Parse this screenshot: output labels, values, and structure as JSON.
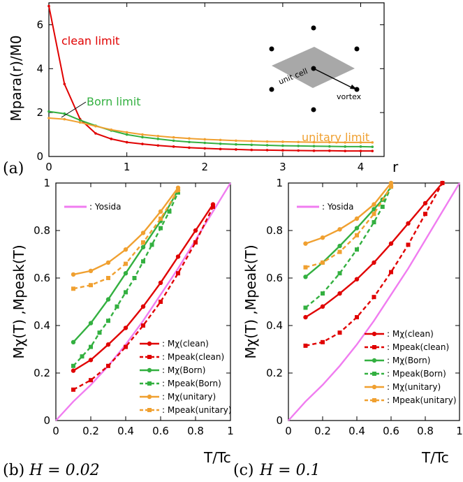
{
  "chart_data": [
    {
      "type": "line",
      "panel_label": "(a)",
      "ylabel": "Mpara(r)/M0",
      "xlabel": "r",
      "xlim": [
        0,
        4.3
      ],
      "ylim": [
        0,
        7
      ],
      "x_ticks": [
        "0",
        "1",
        "2",
        "3",
        "4"
      ],
      "y_ticks": [
        "0",
        "2",
        "4",
        "6"
      ],
      "series": [
        {
          "name": "clean limit",
          "color": "#e00000",
          "x": [
            0,
            0.2,
            0.4,
            0.6,
            0.8,
            1.0,
            1.2,
            1.4,
            1.6,
            1.8,
            2.0,
            2.2,
            2.4,
            2.6,
            2.8,
            3.0,
            3.2,
            3.4,
            3.6,
            3.8,
            4.0,
            4.15
          ],
          "y": [
            6.85,
            3.3,
            1.7,
            1.05,
            0.8,
            0.65,
            0.57,
            0.5,
            0.45,
            0.4,
            0.37,
            0.34,
            0.32,
            0.3,
            0.29,
            0.28,
            0.27,
            0.26,
            0.26,
            0.25,
            0.25,
            0.25
          ]
        },
        {
          "name": "Born limit",
          "color": "#33b040",
          "x": [
            0,
            0.2,
            0.4,
            0.6,
            0.8,
            1.0,
            1.2,
            1.4,
            1.6,
            1.8,
            2.0,
            2.2,
            2.4,
            2.6,
            2.8,
            3.0,
            3.2,
            3.4,
            3.6,
            3.8,
            4.0,
            4.15
          ],
          "y": [
            2.05,
            1.95,
            1.65,
            1.4,
            1.18,
            1.0,
            0.88,
            0.8,
            0.72,
            0.66,
            0.62,
            0.58,
            0.55,
            0.53,
            0.51,
            0.49,
            0.48,
            0.47,
            0.46,
            0.45,
            0.45,
            0.44
          ]
        },
        {
          "name": "unitary limit",
          "color": "#f0a030",
          "x": [
            0,
            0.2,
            0.4,
            0.6,
            0.8,
            1.0,
            1.2,
            1.4,
            1.6,
            1.8,
            2.0,
            2.2,
            2.4,
            2.6,
            2.8,
            3.0,
            3.2,
            3.4,
            3.6,
            3.8,
            4.0,
            4.15
          ],
          "y": [
            1.75,
            1.7,
            1.55,
            1.38,
            1.22,
            1.1,
            1.0,
            0.93,
            0.87,
            0.82,
            0.78,
            0.75,
            0.72,
            0.7,
            0.68,
            0.67,
            0.66,
            0.65,
            0.65,
            0.64,
            0.64,
            0.64
          ]
        }
      ],
      "inset_labels": {
        "cell": "unit cell",
        "vortex": "vortex"
      }
    },
    {
      "type": "line",
      "panel_label": "(b)",
      "panel_note": "H = 0.02",
      "ylabel": "Mχ(T) ,Mpeak(T)",
      "xlabel": "T/Tc",
      "xlim": [
        0,
        1
      ],
      "ylim": [
        0,
        1
      ],
      "x_ticks": [
        "0",
        "0.2",
        "0.4",
        "0.6",
        "0.8",
        "1"
      ],
      "y_ticks": [
        "0",
        "0.2",
        "0.4",
        "0.6",
        "0.8",
        "1"
      ],
      "legend_top": ": Yosida",
      "series": [
        {
          "name": ": Yosida",
          "color": "#f07cf0",
          "style": "solid",
          "marker": "none",
          "x": [
            0,
            0.1,
            0.2,
            0.3,
            0.4,
            0.5,
            0.6,
            0.7,
            0.8,
            0.9,
            1.0
          ],
          "y": [
            0.0,
            0.08,
            0.15,
            0.23,
            0.32,
            0.42,
            0.53,
            0.64,
            0.76,
            0.88,
            1.0
          ]
        },
        {
          "name": ": Mχ(clean)",
          "color": "#e00000",
          "style": "solid",
          "marker": "circle",
          "x": [
            0.1,
            0.2,
            0.3,
            0.4,
            0.5,
            0.6,
            0.7,
            0.8,
            0.9
          ],
          "y": [
            0.21,
            0.255,
            0.32,
            0.39,
            0.48,
            0.58,
            0.69,
            0.8,
            0.91
          ]
        },
        {
          "name": ": Mpeak(clean)",
          "color": "#e00000",
          "style": "dashed",
          "marker": "square",
          "x": [
            0.1,
            0.2,
            0.3,
            0.4,
            0.5,
            0.6,
            0.7,
            0.8,
            0.9
          ],
          "y": [
            0.13,
            0.17,
            0.23,
            0.31,
            0.4,
            0.5,
            0.62,
            0.75,
            0.9
          ]
        },
        {
          "name": ": Mχ(Born)",
          "color": "#33b040",
          "style": "solid",
          "marker": "circle",
          "x": [
            0.1,
            0.2,
            0.3,
            0.4,
            0.5,
            0.6,
            0.7
          ],
          "y": [
            0.33,
            0.41,
            0.51,
            0.62,
            0.73,
            0.84,
            0.97
          ]
        },
        {
          "name": ": Mpeak(Born)",
          "color": "#33b040",
          "style": "dashed",
          "marker": "square",
          "x": [
            0.1,
            0.15,
            0.2,
            0.25,
            0.3,
            0.35,
            0.4,
            0.45,
            0.5,
            0.55,
            0.6,
            0.65,
            0.7
          ],
          "y": [
            0.23,
            0.27,
            0.31,
            0.37,
            0.42,
            0.48,
            0.54,
            0.6,
            0.67,
            0.74,
            0.81,
            0.88,
            0.96
          ]
        },
        {
          "name": ": Mχ(unitary)",
          "color": "#f0a030",
          "style": "solid",
          "marker": "circle",
          "x": [
            0.1,
            0.2,
            0.3,
            0.4,
            0.5,
            0.6,
            0.7
          ],
          "y": [
            0.615,
            0.63,
            0.665,
            0.72,
            0.79,
            0.88,
            0.98
          ]
        },
        {
          "name": ": Mpeak(unitary)",
          "color": "#f0a030",
          "style": "dashed",
          "marker": "square",
          "x": [
            0.1,
            0.2,
            0.3,
            0.4,
            0.5,
            0.6,
            0.7
          ],
          "y": [
            0.555,
            0.57,
            0.6,
            0.66,
            0.75,
            0.85,
            0.97
          ]
        }
      ]
    },
    {
      "type": "line",
      "panel_label": "(c)",
      "panel_note": "H = 0.1",
      "ylabel": "Mχ(T) ,Mpeak(T)",
      "xlabel": "T/Tc",
      "xlim": [
        0,
        1
      ],
      "ylim": [
        0,
        1
      ],
      "x_ticks": [
        "0",
        "0.2",
        "0.4",
        "0.6",
        "0.8",
        "1"
      ],
      "y_ticks": [
        "0",
        "0.2",
        "0.4",
        "0.6",
        "0.8",
        "1"
      ],
      "legend_top": ": Yosida",
      "series": [
        {
          "name": ": Yosida",
          "color": "#f07cf0",
          "style": "solid",
          "marker": "none",
          "x": [
            0,
            0.1,
            0.2,
            0.3,
            0.4,
            0.5,
            0.6,
            0.7,
            0.8,
            0.9,
            1.0
          ],
          "y": [
            0.0,
            0.08,
            0.15,
            0.23,
            0.32,
            0.42,
            0.53,
            0.64,
            0.76,
            0.88,
            1.0
          ]
        },
        {
          "name": ": Mχ(clean)",
          "color": "#e00000",
          "style": "solid",
          "marker": "circle",
          "x": [
            0.1,
            0.2,
            0.3,
            0.4,
            0.5,
            0.6,
            0.7,
            0.8,
            0.9
          ],
          "y": [
            0.435,
            0.48,
            0.535,
            0.595,
            0.665,
            0.745,
            0.83,
            0.915,
            1.0
          ]
        },
        {
          "name": ": Mpeak(clean)",
          "color": "#e00000",
          "style": "dashed",
          "marker": "square",
          "x": [
            0.1,
            0.2,
            0.3,
            0.4,
            0.5,
            0.6,
            0.7,
            0.8,
            0.9
          ],
          "y": [
            0.315,
            0.33,
            0.37,
            0.435,
            0.52,
            0.625,
            0.74,
            0.87,
            1.0
          ]
        },
        {
          "name": ": Mχ(Born)",
          "color": "#33b040",
          "style": "solid",
          "marker": "circle",
          "x": [
            0.1,
            0.2,
            0.3,
            0.4,
            0.5,
            0.55,
            0.6
          ],
          "y": [
            0.605,
            0.665,
            0.735,
            0.81,
            0.89,
            0.93,
            0.985
          ]
        },
        {
          "name": ": Mpeak(Born)",
          "color": "#33b040",
          "style": "dashed",
          "marker": "square",
          "x": [
            0.1,
            0.2,
            0.3,
            0.4,
            0.5,
            0.55,
            0.6
          ],
          "y": [
            0.475,
            0.535,
            0.62,
            0.72,
            0.835,
            0.9,
            0.985
          ]
        },
        {
          "name": ": Mχ(unitary)",
          "color": "#f0a030",
          "style": "solid",
          "marker": "circle",
          "x": [
            0.1,
            0.2,
            0.3,
            0.4,
            0.5,
            0.6
          ],
          "y": [
            0.745,
            0.77,
            0.805,
            0.85,
            0.91,
            1.0
          ]
        },
        {
          "name": ": Mpeak(unitary)",
          "color": "#f0a030",
          "style": "dashed",
          "marker": "square",
          "x": [
            0.1,
            0.2,
            0.3,
            0.4,
            0.5,
            0.6
          ],
          "y": [
            0.645,
            0.665,
            0.71,
            0.78,
            0.87,
            0.985
          ]
        }
      ]
    }
  ]
}
